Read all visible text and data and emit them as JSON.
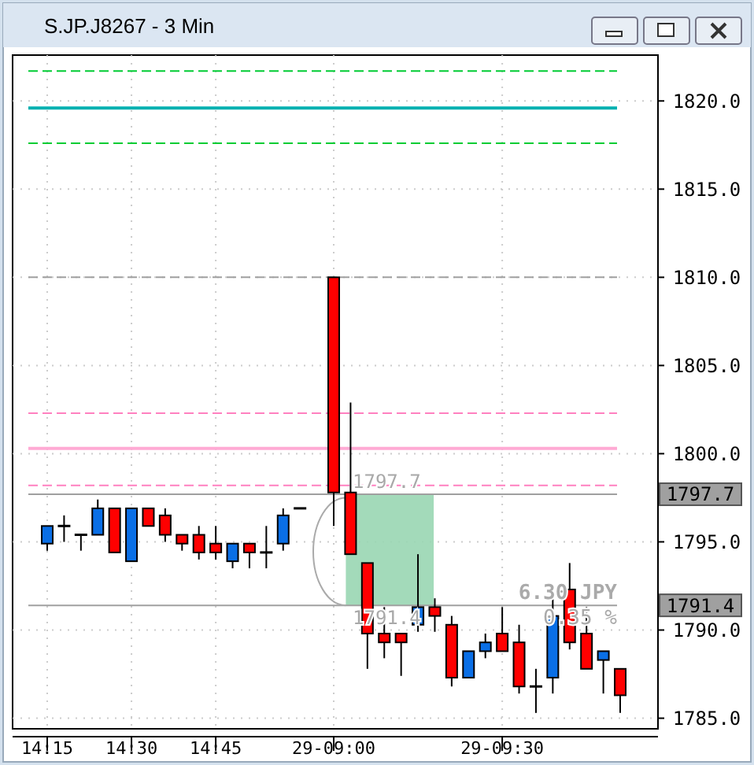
{
  "chart_data": {
    "type": "candlestick",
    "title": "S.JP.J8267 - 3 Min",
    "categories": [
      "14:15",
      null,
      null,
      null,
      null,
      "14:30",
      null,
      null,
      null,
      null,
      "14:45",
      null,
      null,
      null,
      null,
      null,
      null,
      "29-09:00",
      null,
      null,
      null,
      null,
      null,
      null,
      null,
      null,
      null,
      "29-09:30",
      null,
      null,
      null,
      null,
      null,
      null,
      null
    ],
    "ohlc": [
      [
        1794.9,
        1795.9,
        1794.5,
        1795.9
      ],
      [
        1795.9,
        1796.5,
        1795.0,
        1795.9
      ],
      [
        1795.4,
        1795.4,
        1794.5,
        1795.4
      ],
      [
        1795.4,
        1797.4,
        1795.4,
        1796.9
      ],
      [
        1796.9,
        1796.9,
        1794.4,
        1794.4
      ],
      [
        1793.9,
        1796.9,
        1793.9,
        1796.9
      ],
      [
        1796.9,
        1796.9,
        1795.9,
        1795.9
      ],
      [
        1796.5,
        1796.9,
        1795.0,
        1795.4
      ],
      [
        1795.4,
        1795.4,
        1794.5,
        1794.9
      ],
      [
        1795.4,
        1795.9,
        1794.0,
        1794.4
      ],
      [
        1794.9,
        1795.9,
        1794.0,
        1794.4
      ],
      [
        1793.9,
        1794.9,
        1793.5,
        1794.9
      ],
      [
        1794.9,
        1794.9,
        1793.5,
        1794.4
      ],
      [
        1794.4,
        1795.9,
        1793.5,
        1794.4
      ],
      [
        1794.9,
        1796.9,
        1794.5,
        1796.5
      ],
      [
        1796.9,
        1796.9,
        1796.9,
        1796.9
      ],
      null,
      [
        1810,
        1810,
        1795.9,
        1797.8
      ],
      [
        1797.8,
        1802.9,
        1794.3,
        1794.3
      ],
      [
        1793.8,
        1793.8,
        1787.8,
        1789.8
      ],
      [
        1789.8,
        1791.3,
        1788.4,
        1789.3
      ],
      [
        1789.8,
        1789.8,
        1787.4,
        1789.3
      ],
      [
        1790.3,
        1794.3,
        1789.9,
        1791.3
      ],
      [
        1791.3,
        1791.8,
        1789.9,
        1790.8
      ],
      [
        1790.3,
        1790.8,
        1786.8,
        1787.3
      ],
      [
        1787.3,
        1788.8,
        1787.3,
        1788.8
      ],
      [
        1788.8,
        1789.8,
        1788.4,
        1789.3
      ],
      [
        1789.8,
        1791.3,
        1788.8,
        1788.8
      ],
      [
        1789.3,
        1790.3,
        1786.4,
        1786.8
      ],
      [
        1786.8,
        1787.8,
        1785.3,
        1786.8
      ],
      [
        1787.3,
        1791.8,
        1786.4,
        1790.8
      ],
      [
        1792.3,
        1793.8,
        1788.9,
        1789.3
      ],
      [
        1789.8,
        1791.3,
        1787.8,
        1787.8
      ],
      [
        1788.3,
        1788.8,
        1786.4,
        1788.8
      ],
      [
        1787.8,
        1787.8,
        1785.3,
        1786.3
      ]
    ],
    "colors": [
      "#0a6fe6",
      "#000000",
      "#000000",
      "#0a6fe6",
      "#ff0000",
      "#0a6fe6",
      "#ff0000",
      "#ff0000",
      "#ff0000",
      "#ff0000",
      "#ff0000",
      "#0a6fe6",
      "#ff0000",
      "#000000",
      "#0a6fe6",
      "#000000",
      null,
      "#ff0000",
      "#ff0000",
      "#ff0000",
      "#ff0000",
      "#ff0000",
      "#0a6fe6",
      "#ff0000",
      "#ff0000",
      "#0a6fe6",
      "#0a6fe6",
      "#ff0000",
      "#ff0000",
      "#000000",
      "#0a6fe6",
      "#ff0000",
      "#ff0000",
      "#0a6fe6",
      "#ff0000"
    ],
    "ylim": [
      1784.4,
      1822.6
    ],
    "yticks": [
      {
        "value": 1785,
        "label": "1785.0"
      },
      {
        "value": 1790,
        "label": "1790.0"
      },
      {
        "value": 1795,
        "label": "1795.0"
      },
      {
        "value": 1800,
        "label": "1800.0"
      },
      {
        "value": 1805,
        "label": "1805.0"
      },
      {
        "value": 1810,
        "label": "1810.0"
      },
      {
        "value": 1815,
        "label": "1815.0"
      },
      {
        "value": 1820,
        "label": "1820.0"
      }
    ],
    "grid": true,
    "ref_lines": [
      {
        "axis": "y",
        "value": 1821.7,
        "color": "#00cc33",
        "line_style": "dashed"
      },
      {
        "axis": "y",
        "value": 1819.6,
        "color": "#00b0b0",
        "line_style": "solid"
      },
      {
        "axis": "y",
        "value": 1817.6,
        "color": "#00cc33",
        "line_style": "dashed"
      },
      {
        "axis": "y",
        "value": 1810,
        "color": "#a0a0a0",
        "line_style": "dashed"
      },
      {
        "axis": "y",
        "value": 1802.3,
        "color": "#ff80c0",
        "line_style": "dashed"
      },
      {
        "axis": "y",
        "value": 1800.3,
        "color": "#ffaad4",
        "line_style": "solid"
      },
      {
        "axis": "y",
        "value": 1798.2,
        "color": "#ff80c0",
        "line_style": "dashed"
      },
      {
        "axis": "y",
        "value": 1797.7,
        "label": "1797.7",
        "color": "#a0a0a0",
        "line_style": "solid"
      },
      {
        "axis": "y",
        "value": 1791.4,
        "label": "1791.4",
        "color": "#a0a0a0",
        "line_style": "solid"
      }
    ],
    "bands": [
      {
        "axis": "y",
        "from": 1791.4,
        "to": 1797.7,
        "color": "#99d6b3"
      }
    ],
    "annotations": [
      "6.30 JPY",
      "0.35 %"
    ]
  }
}
